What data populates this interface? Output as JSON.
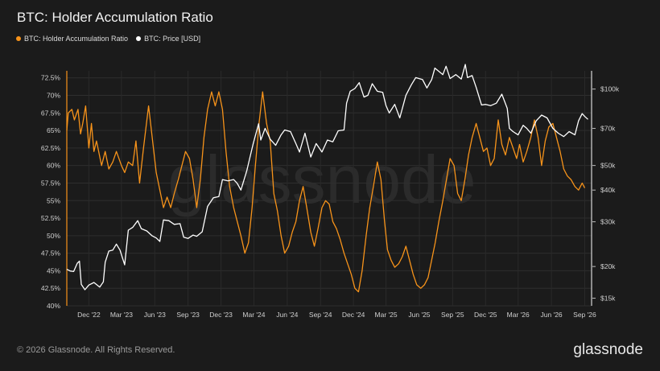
{
  "title": "BTC: Holder Accumulation Ratio",
  "legend": [
    {
      "label": "BTC: Holder Accumulation Ratio",
      "color": "#f7931a"
    },
    {
      "label": "BTC: Price [USD]",
      "color": "#ffffff"
    }
  ],
  "watermark": "glassnode",
  "footer": {
    "copyright": "© 2026 Glassnode. All Rights Reserved.",
    "logo": "glassnode"
  },
  "chart_data": {
    "type": "line",
    "x_tick_labels": [
      "Dec '22",
      "Mar '23",
      "Jun '23",
      "Sep '23",
      "Dec '23",
      "Mar '24",
      "Jun '24",
      "Sep '24",
      "Dec '24",
      "Mar '25",
      "Jun '25",
      "Sep '25",
      "Dec '25",
      "Mar '26",
      "Jun '26",
      "Sep '26"
    ],
    "x_tick_dates": [
      "2022-12-01",
      "2023-03-01",
      "2023-06-01",
      "2023-09-01",
      "2023-12-01",
      "2024-03-01",
      "2024-06-01",
      "2024-09-01",
      "2024-12-01",
      "2025-03-01",
      "2025-06-01",
      "2025-09-01",
      "2025-12-01",
      "2026-03-01",
      "2026-06-01",
      "2026-09-01"
    ],
    "xlim": [
      "2022-10-01",
      "2026-09-20"
    ],
    "left_axis": {
      "tick_labels": [
        "40%",
        "42.5%",
        "45%",
        "47.5%",
        "50%",
        "52.5%",
        "55%",
        "57.5%",
        "60%",
        "62.5%",
        "65%",
        "67.5%",
        "70%",
        "72.5%"
      ],
      "ylim": [
        40,
        73.5
      ]
    },
    "right_axis": {
      "scale": "log",
      "tick_values": [
        15000,
        20000,
        30000,
        40000,
        50000,
        70000,
        100000
      ],
      "tick_labels": [
        "$15k",
        "$20k",
        "$30k",
        "$40k",
        "$50k",
        "$70k",
        "$100k"
      ],
      "ylim": [
        14000,
        118000
      ]
    },
    "grid": true,
    "series": [
      {
        "name": "BTC: Holder Accumulation Ratio",
        "axis": "left",
        "color": "#f7931a",
        "points": [
          [
            "2022-10-01",
            65.0
          ],
          [
            "2022-10-05",
            67.5
          ],
          [
            "2022-10-15",
            68.0
          ],
          [
            "2022-10-22",
            66.5
          ],
          [
            "2022-11-01",
            68.0
          ],
          [
            "2022-11-08",
            64.5
          ],
          [
            "2022-11-14",
            66.0
          ],
          [
            "2022-11-22",
            68.5
          ],
          [
            "2022-12-01",
            62.5
          ],
          [
            "2022-12-08",
            66.0
          ],
          [
            "2022-12-15",
            62.0
          ],
          [
            "2022-12-22",
            63.5
          ],
          [
            "2023-01-05",
            60.0
          ],
          [
            "2023-01-15",
            62.0
          ],
          [
            "2023-01-25",
            59.5
          ],
          [
            "2023-02-05",
            60.5
          ],
          [
            "2023-02-15",
            62.0
          ],
          [
            "2023-03-01",
            60.0
          ],
          [
            "2023-03-10",
            59.0
          ],
          [
            "2023-03-20",
            60.5
          ],
          [
            "2023-04-01",
            60.0
          ],
          [
            "2023-04-10",
            63.5
          ],
          [
            "2023-04-20",
            57.5
          ],
          [
            "2023-05-01",
            62.5
          ],
          [
            "2023-05-15",
            68.5
          ],
          [
            "2023-05-25",
            64.0
          ],
          [
            "2023-06-05",
            59.0
          ],
          [
            "2023-06-15",
            56.5
          ],
          [
            "2023-06-25",
            54.0
          ],
          [
            "2023-07-05",
            55.5
          ],
          [
            "2023-07-15",
            54.0
          ],
          [
            "2023-07-25",
            56.0
          ],
          [
            "2023-08-05",
            58.0
          ],
          [
            "2023-08-15",
            60.0
          ],
          [
            "2023-08-25",
            62.0
          ],
          [
            "2023-09-05",
            61.0
          ],
          [
            "2023-09-15",
            58.0
          ],
          [
            "2023-09-25",
            54.0
          ],
          [
            "2023-10-05",
            58.0
          ],
          [
            "2023-10-15",
            64.0
          ],
          [
            "2023-10-25",
            68.0
          ],
          [
            "2023-11-05",
            70.5
          ],
          [
            "2023-11-15",
            68.5
          ],
          [
            "2023-11-25",
            70.5
          ],
          [
            "2023-12-05",
            68.0
          ],
          [
            "2023-12-15",
            62.0
          ],
          [
            "2023-12-25",
            57.0
          ],
          [
            "2024-01-05",
            54.0
          ],
          [
            "2024-01-15",
            52.0
          ],
          [
            "2024-01-25",
            50.0
          ],
          [
            "2024-02-05",
            47.5
          ],
          [
            "2024-02-15",
            49.0
          ],
          [
            "2024-02-25",
            54.0
          ],
          [
            "2024-03-05",
            60.0
          ],
          [
            "2024-03-15",
            66.0
          ],
          [
            "2024-03-25",
            70.5
          ],
          [
            "2024-04-05",
            66.0
          ],
          [
            "2024-04-15",
            63.5
          ],
          [
            "2024-04-25",
            56.0
          ],
          [
            "2024-05-05",
            53.5
          ],
          [
            "2024-05-15",
            50.0
          ],
          [
            "2024-05-25",
            47.5
          ],
          [
            "2024-06-05",
            48.5
          ],
          [
            "2024-06-15",
            50.5
          ],
          [
            "2024-06-25",
            52.0
          ],
          [
            "2024-07-05",
            55.0
          ],
          [
            "2024-07-15",
            57.0
          ],
          [
            "2024-07-25",
            54.0
          ],
          [
            "2024-08-05",
            50.5
          ],
          [
            "2024-08-15",
            48.5
          ],
          [
            "2024-08-25",
            51.0
          ],
          [
            "2024-09-05",
            54.0
          ],
          [
            "2024-09-15",
            55.0
          ],
          [
            "2024-09-25",
            54.5
          ],
          [
            "2024-10-05",
            52.0
          ],
          [
            "2024-10-15",
            51.0
          ],
          [
            "2024-10-25",
            49.5
          ],
          [
            "2024-11-05",
            47.5
          ],
          [
            "2024-11-15",
            46.0
          ],
          [
            "2024-11-25",
            44.5
          ],
          [
            "2024-12-05",
            42.5
          ],
          [
            "2024-12-15",
            42.0
          ],
          [
            "2024-12-25",
            45.0
          ],
          [
            "2025-01-05",
            50.0
          ],
          [
            "2025-01-15",
            54.0
          ],
          [
            "2025-01-25",
            57.0
          ],
          [
            "2025-02-05",
            60.5
          ],
          [
            "2025-02-15",
            58.0
          ],
          [
            "2025-02-25",
            52.0
          ],
          [
            "2025-03-05",
            48.0
          ],
          [
            "2025-03-15",
            46.5
          ],
          [
            "2025-03-25",
            45.5
          ],
          [
            "2025-04-05",
            46.0
          ],
          [
            "2025-04-15",
            47.0
          ],
          [
            "2025-04-25",
            48.5
          ],
          [
            "2025-05-05",
            46.5
          ],
          [
            "2025-05-15",
            44.5
          ],
          [
            "2025-05-25",
            43.0
          ],
          [
            "2025-06-05",
            42.5
          ],
          [
            "2025-06-15",
            43.0
          ],
          [
            "2025-06-25",
            44.0
          ],
          [
            "2025-07-05",
            46.5
          ],
          [
            "2025-07-15",
            49.0
          ],
          [
            "2025-07-25",
            52.0
          ],
          [
            "2025-08-05",
            55.0
          ],
          [
            "2025-08-15",
            58.0
          ],
          [
            "2025-08-25",
            61.0
          ],
          [
            "2025-09-05",
            60.0
          ],
          [
            "2025-09-15",
            56.0
          ],
          [
            "2025-09-25",
            55.0
          ],
          [
            "2025-10-05",
            58.0
          ],
          [
            "2025-10-15",
            61.5
          ],
          [
            "2025-10-25",
            64.0
          ],
          [
            "2025-11-05",
            66.0
          ],
          [
            "2025-11-15",
            64.0
          ],
          [
            "2025-11-25",
            62.0
          ],
          [
            "2025-12-05",
            62.5
          ],
          [
            "2025-12-15",
            60.0
          ],
          [
            "2025-12-25",
            61.0
          ],
          [
            "2026-01-05",
            66.5
          ],
          [
            "2026-01-15",
            63.0
          ],
          [
            "2026-01-25",
            61.5
          ],
          [
            "2026-02-05",
            64.0
          ],
          [
            "2026-02-15",
            62.5
          ],
          [
            "2026-02-25",
            61.0
          ],
          [
            "2026-03-05",
            63.0
          ],
          [
            "2026-03-15",
            60.5
          ],
          [
            "2026-03-25",
            62.0
          ],
          [
            "2026-04-05",
            64.0
          ],
          [
            "2026-04-15",
            66.5
          ],
          [
            "2026-04-25",
            64.0
          ],
          [
            "2026-05-05",
            60.0
          ],
          [
            "2026-05-15",
            63.5
          ],
          [
            "2026-05-25",
            65.5
          ],
          [
            "2026-06-05",
            66.0
          ],
          [
            "2026-06-15",
            64.0
          ],
          [
            "2026-06-25",
            62.0
          ],
          [
            "2026-07-05",
            59.5
          ],
          [
            "2026-07-15",
            58.5
          ],
          [
            "2026-07-25",
            58.0
          ],
          [
            "2026-08-05",
            57.0
          ],
          [
            "2026-08-15",
            56.5
          ],
          [
            "2026-08-25",
            57.5
          ],
          [
            "2026-09-01",
            56.8
          ]
        ]
      },
      {
        "name": "BTC: Price [USD]",
        "axis": "right",
        "color": "#ffffff",
        "points": [
          [
            "2022-10-01",
            19500
          ],
          [
            "2022-10-10",
            19200
          ],
          [
            "2022-10-20",
            19100
          ],
          [
            "2022-10-30",
            20600
          ],
          [
            "2022-11-05",
            21000
          ],
          [
            "2022-11-10",
            17000
          ],
          [
            "2022-11-20",
            16200
          ],
          [
            "2022-12-01",
            16900
          ],
          [
            "2022-12-15",
            17300
          ],
          [
            "2022-12-31",
            16600
          ],
          [
            "2023-01-10",
            17400
          ],
          [
            "2023-01-15",
            20800
          ],
          [
            "2023-01-25",
            23000
          ],
          [
            "2023-02-05",
            23200
          ],
          [
            "2023-02-15",
            24500
          ],
          [
            "2023-02-25",
            23200
          ],
          [
            "2023-03-10",
            20300
          ],
          [
            "2023-03-20",
            27800
          ],
          [
            "2023-04-01",
            28500
          ],
          [
            "2023-04-15",
            30300
          ],
          [
            "2023-04-25",
            28200
          ],
          [
            "2023-05-10",
            27600
          ],
          [
            "2023-05-25",
            26400
          ],
          [
            "2023-06-05",
            25900
          ],
          [
            "2023-06-15",
            25100
          ],
          [
            "2023-06-25",
            30500
          ],
          [
            "2023-07-10",
            30300
          ],
          [
            "2023-07-25",
            29300
          ],
          [
            "2023-08-10",
            29500
          ],
          [
            "2023-08-20",
            26100
          ],
          [
            "2023-09-01",
            25800
          ],
          [
            "2023-09-15",
            26600
          ],
          [
            "2023-09-25",
            26300
          ],
          [
            "2023-10-10",
            27400
          ],
          [
            "2023-10-25",
            34500
          ],
          [
            "2023-11-10",
            37300
          ],
          [
            "2023-11-25",
            37700
          ],
          [
            "2023-12-05",
            44000
          ],
          [
            "2023-12-20",
            43500
          ],
          [
            "2024-01-05",
            44000
          ],
          [
            "2024-01-15",
            42500
          ],
          [
            "2024-01-25",
            40000
          ],
          [
            "2024-02-10",
            47500
          ],
          [
            "2024-02-28",
            61000
          ],
          [
            "2024-03-14",
            73000
          ],
          [
            "2024-03-20",
            63000
          ],
          [
            "2024-04-01",
            70000
          ],
          [
            "2024-04-15",
            63500
          ],
          [
            "2024-04-30",
            60000
          ],
          [
            "2024-05-15",
            66000
          ],
          [
            "2024-05-25",
            69000
          ],
          [
            "2024-06-10",
            68000
          ],
          [
            "2024-06-25",
            61000
          ],
          [
            "2024-07-05",
            56500
          ],
          [
            "2024-07-20",
            67000
          ],
          [
            "2024-08-05",
            54000
          ],
          [
            "2024-08-20",
            61000
          ],
          [
            "2024-09-05",
            56500
          ],
          [
            "2024-09-20",
            63000
          ],
          [
            "2024-10-05",
            62000
          ],
          [
            "2024-10-20",
            68500
          ],
          [
            "2024-11-05",
            69000
          ],
          [
            "2024-11-12",
            88000
          ],
          [
            "2024-11-22",
            98000
          ],
          [
            "2024-12-05",
            100500
          ],
          [
            "2024-12-17",
            106000
          ],
          [
            "2024-12-30",
            93000
          ],
          [
            "2025-01-10",
            94500
          ],
          [
            "2025-01-22",
            105000
          ],
          [
            "2025-02-05",
            98000
          ],
          [
            "2025-02-20",
            97000
          ],
          [
            "2025-03-01",
            86000
          ],
          [
            "2025-03-10",
            80500
          ],
          [
            "2025-03-25",
            87000
          ],
          [
            "2025-04-08",
            77000
          ],
          [
            "2025-04-25",
            94500
          ],
          [
            "2025-05-10",
            104000
          ],
          [
            "2025-05-22",
            111000
          ],
          [
            "2025-06-10",
            109000
          ],
          [
            "2025-06-22",
            101000
          ],
          [
            "2025-07-05",
            109000
          ],
          [
            "2025-07-14",
            121000
          ],
          [
            "2025-07-25",
            117500
          ],
          [
            "2025-08-05",
            114000
          ],
          [
            "2025-08-14",
            123000
          ],
          [
            "2025-08-25",
            110000
          ],
          [
            "2025-09-10",
            114000
          ],
          [
            "2025-09-25",
            109500
          ],
          [
            "2025-10-06",
            125000
          ],
          [
            "2025-10-12",
            111000
          ],
          [
            "2025-10-25",
            113000
          ],
          [
            "2025-11-05",
            101500
          ],
          [
            "2025-11-20",
            86500
          ],
          [
            "2025-12-01",
            87000
          ],
          [
            "2025-12-15",
            86000
          ],
          [
            "2025-12-31",
            88000
          ],
          [
            "2026-01-15",
            95500
          ],
          [
            "2026-01-30",
            84000
          ],
          [
            "2026-02-05",
            70000
          ],
          [
            "2026-02-15",
            68000
          ],
          [
            "2026-03-01",
            66000
          ],
          [
            "2026-03-15",
            72000
          ],
          [
            "2026-03-25",
            70000
          ],
          [
            "2026-04-05",
            67000
          ],
          [
            "2026-04-20",
            75000
          ],
          [
            "2026-05-05",
            79000
          ],
          [
            "2026-05-20",
            77000
          ],
          [
            "2026-06-05",
            70000
          ],
          [
            "2026-06-20",
            67000
          ],
          [
            "2026-07-05",
            65000
          ],
          [
            "2026-07-20",
            68000
          ],
          [
            "2026-08-05",
            66000
          ],
          [
            "2026-08-15",
            75000
          ],
          [
            "2026-08-25",
            80000
          ],
          [
            "2026-09-01",
            78000
          ],
          [
            "2026-09-10",
            76000
          ]
        ]
      }
    ]
  }
}
